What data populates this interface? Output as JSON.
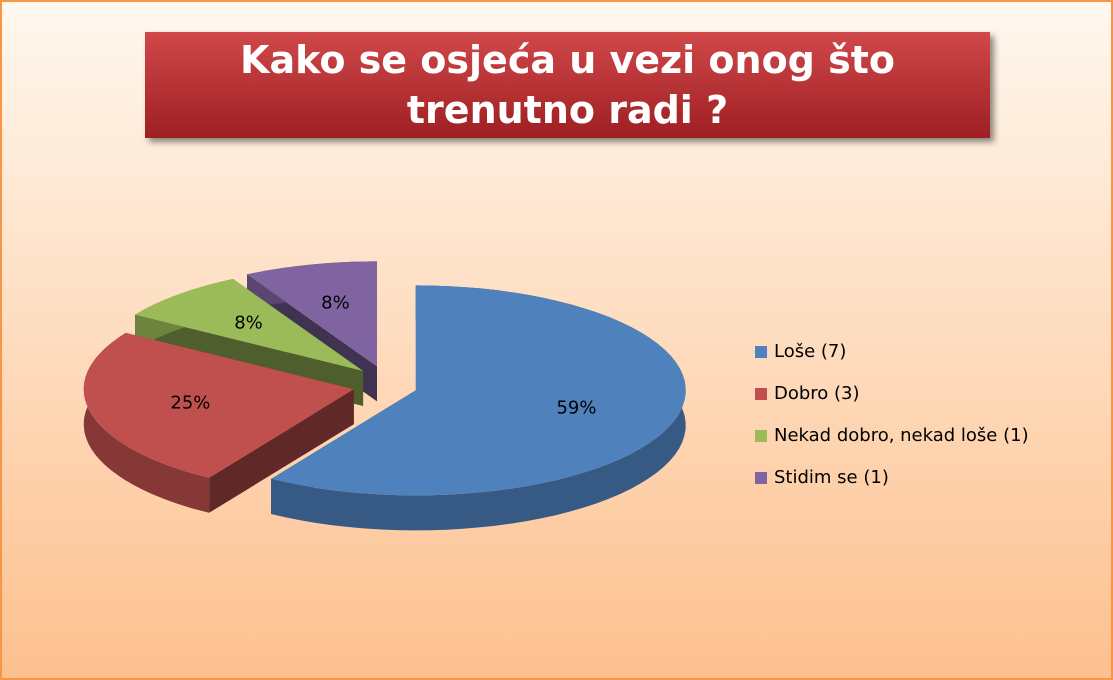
{
  "chart_data": {
    "type": "pie",
    "title": "Kako se osjeća u vezi onog što trenutno radi ?",
    "categories": [
      "Loše (7)",
      "Dobro (3)",
      "Nekad dobro, nekad loše (1)",
      "Stidim se (1)"
    ],
    "values": [
      59,
      25,
      8,
      8
    ],
    "value_labels": [
      "59%",
      "25%",
      "8%",
      "8%"
    ],
    "colors": [
      "#4f81bd",
      "#c0504d",
      "#9bbb59",
      "#8064a2"
    ],
    "legend": "right"
  }
}
